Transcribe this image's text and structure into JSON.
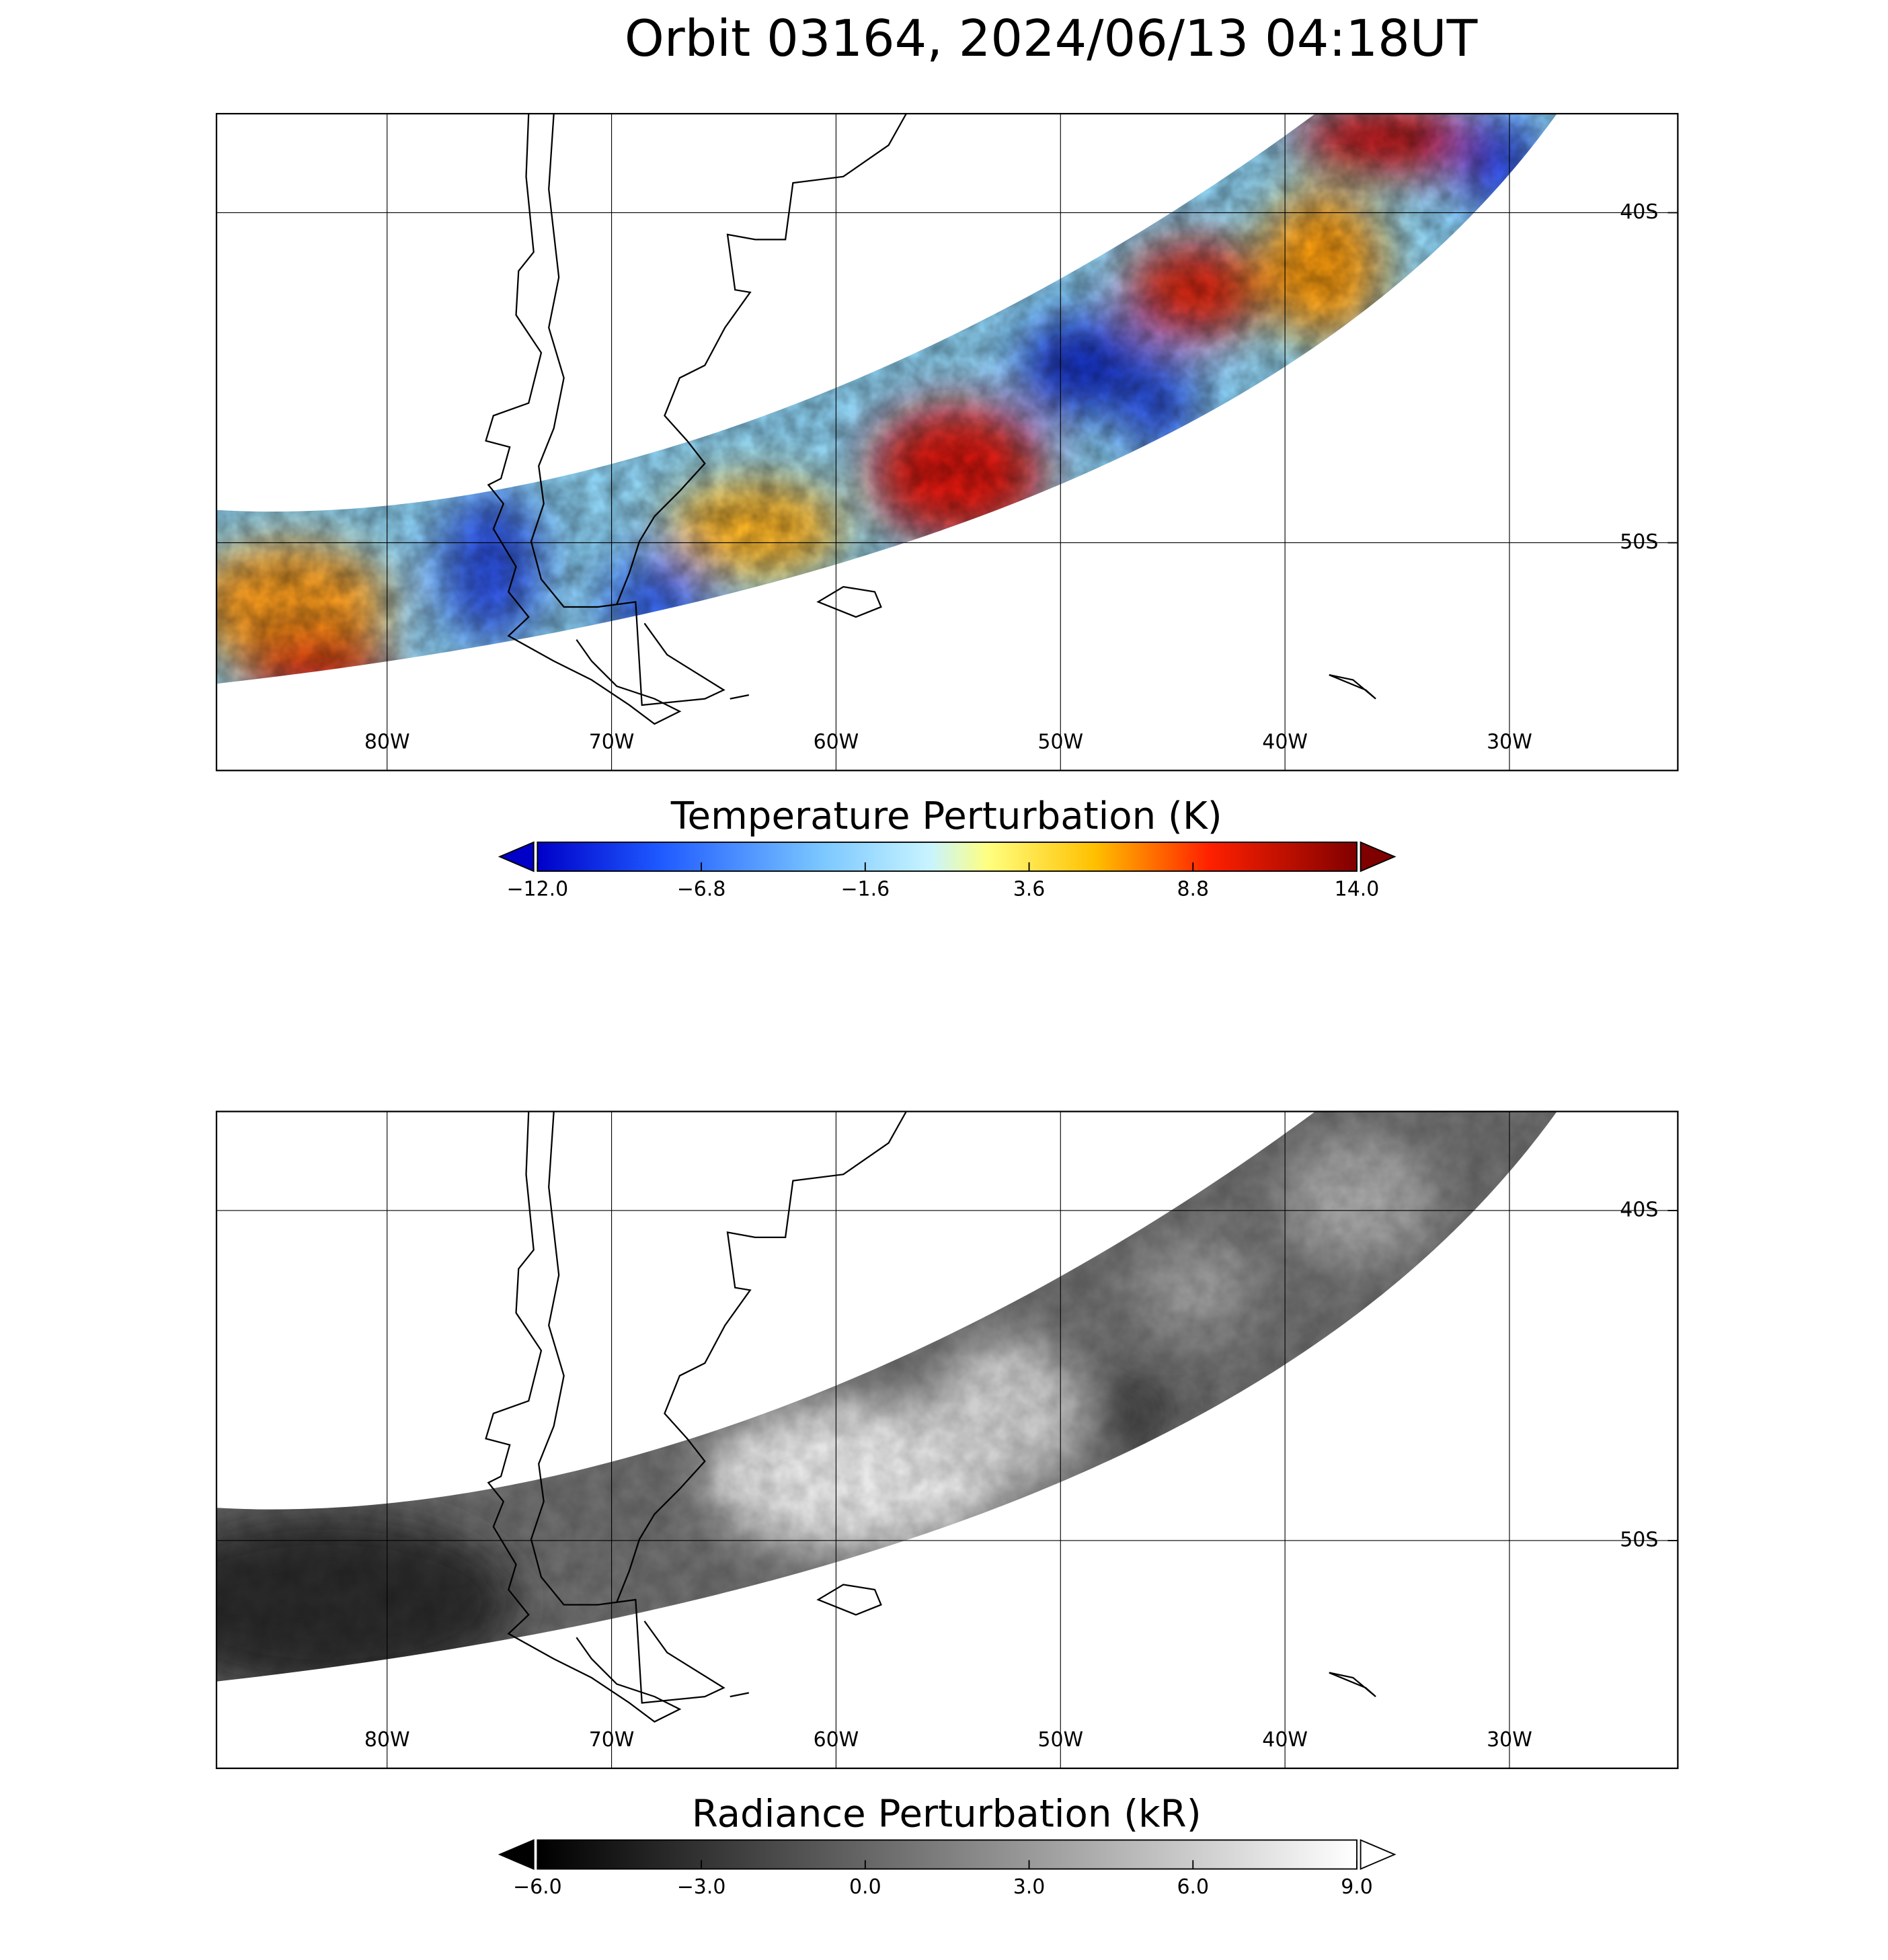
{
  "title": "Orbit 03164, 2024/06/13 04:18UT",
  "panels": [
    {
      "xlim": [
        -87.6,
        -22.5
      ],
      "ylim": [
        -56.9,
        -37.0
      ],
      "xticks": [
        {
          "value": -80,
          "label": "80W"
        },
        {
          "value": -70,
          "label": "70W"
        },
        {
          "value": -60,
          "label": "60W"
        },
        {
          "value": -50,
          "label": "50W"
        },
        {
          "value": -40,
          "label": "40W"
        },
        {
          "value": -30,
          "label": "30W"
        }
      ],
      "yticks": [
        {
          "value": -40,
          "label": "40S"
        },
        {
          "value": -50,
          "label": "50S"
        }
      ],
      "colorbar": {
        "label": "Temperature Perturbation (K)",
        "colormap": "jet",
        "range": [
          -12,
          14
        ],
        "ticks": [
          {
            "value": -12,
            "label": "−12.0"
          },
          {
            "value": -6.8,
            "label": "−6.8"
          },
          {
            "value": -1.6,
            "label": "−1.6"
          },
          {
            "value": 3.6,
            "label": "3.6"
          },
          {
            "value": 8.8,
            "label": "8.8"
          },
          {
            "value": 14,
            "label": "14.0"
          }
        ]
      }
    },
    {
      "xlim": [
        -87.6,
        -22.5
      ],
      "ylim": [
        -56.9,
        -37.0
      ],
      "xticks": [
        {
          "value": -80,
          "label": "80W"
        },
        {
          "value": -70,
          "label": "70W"
        },
        {
          "value": -60,
          "label": "60W"
        },
        {
          "value": -50,
          "label": "50W"
        },
        {
          "value": -40,
          "label": "40W"
        },
        {
          "value": -30,
          "label": "30W"
        }
      ],
      "yticks": [
        {
          "value": -40,
          "label": "40S"
        },
        {
          "value": -50,
          "label": "50S"
        }
      ],
      "colorbar": {
        "label": "Radiance Perturbation (kR)",
        "colormap": "gray",
        "range": [
          -6,
          9
        ],
        "ticks": [
          {
            "value": -6,
            "label": "−6.0"
          },
          {
            "value": -3,
            "label": "−3.0"
          },
          {
            "value": 0,
            "label": "0.0"
          },
          {
            "value": 3,
            "label": "3.0"
          },
          {
            "value": 6,
            "label": "6.0"
          },
          {
            "value": 9,
            "label": "9.0"
          }
        ]
      }
    }
  ]
}
